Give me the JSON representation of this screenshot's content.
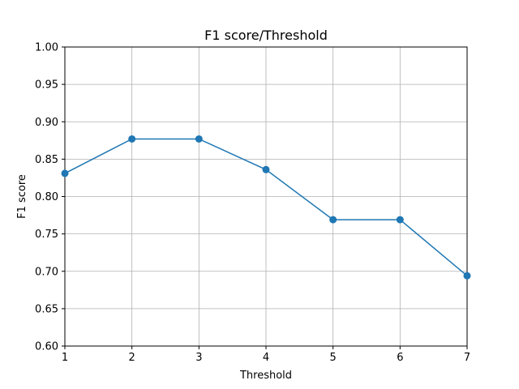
{
  "chart_data": {
    "type": "line",
    "title": "F1 score/Threshold",
    "xlabel": "Threshold",
    "ylabel": "F1 score",
    "x": [
      1,
      2,
      3,
      4,
      5,
      6,
      7
    ],
    "series": [
      {
        "values": [
          0.831,
          0.877,
          0.877,
          0.836,
          0.769,
          0.769,
          0.694
        ]
      }
    ],
    "xlim": [
      1,
      7
    ],
    "ylim": [
      0.6,
      1.0
    ],
    "xticks": [
      "1",
      "2",
      "3",
      "4",
      "5",
      "6",
      "7"
    ],
    "yticks": [
      "0.60",
      "0.65",
      "0.70",
      "0.75",
      "0.80",
      "0.85",
      "0.90",
      "0.95",
      "1.00"
    ],
    "grid": true,
    "marker": "circle",
    "color": "#1f77b4"
  }
}
